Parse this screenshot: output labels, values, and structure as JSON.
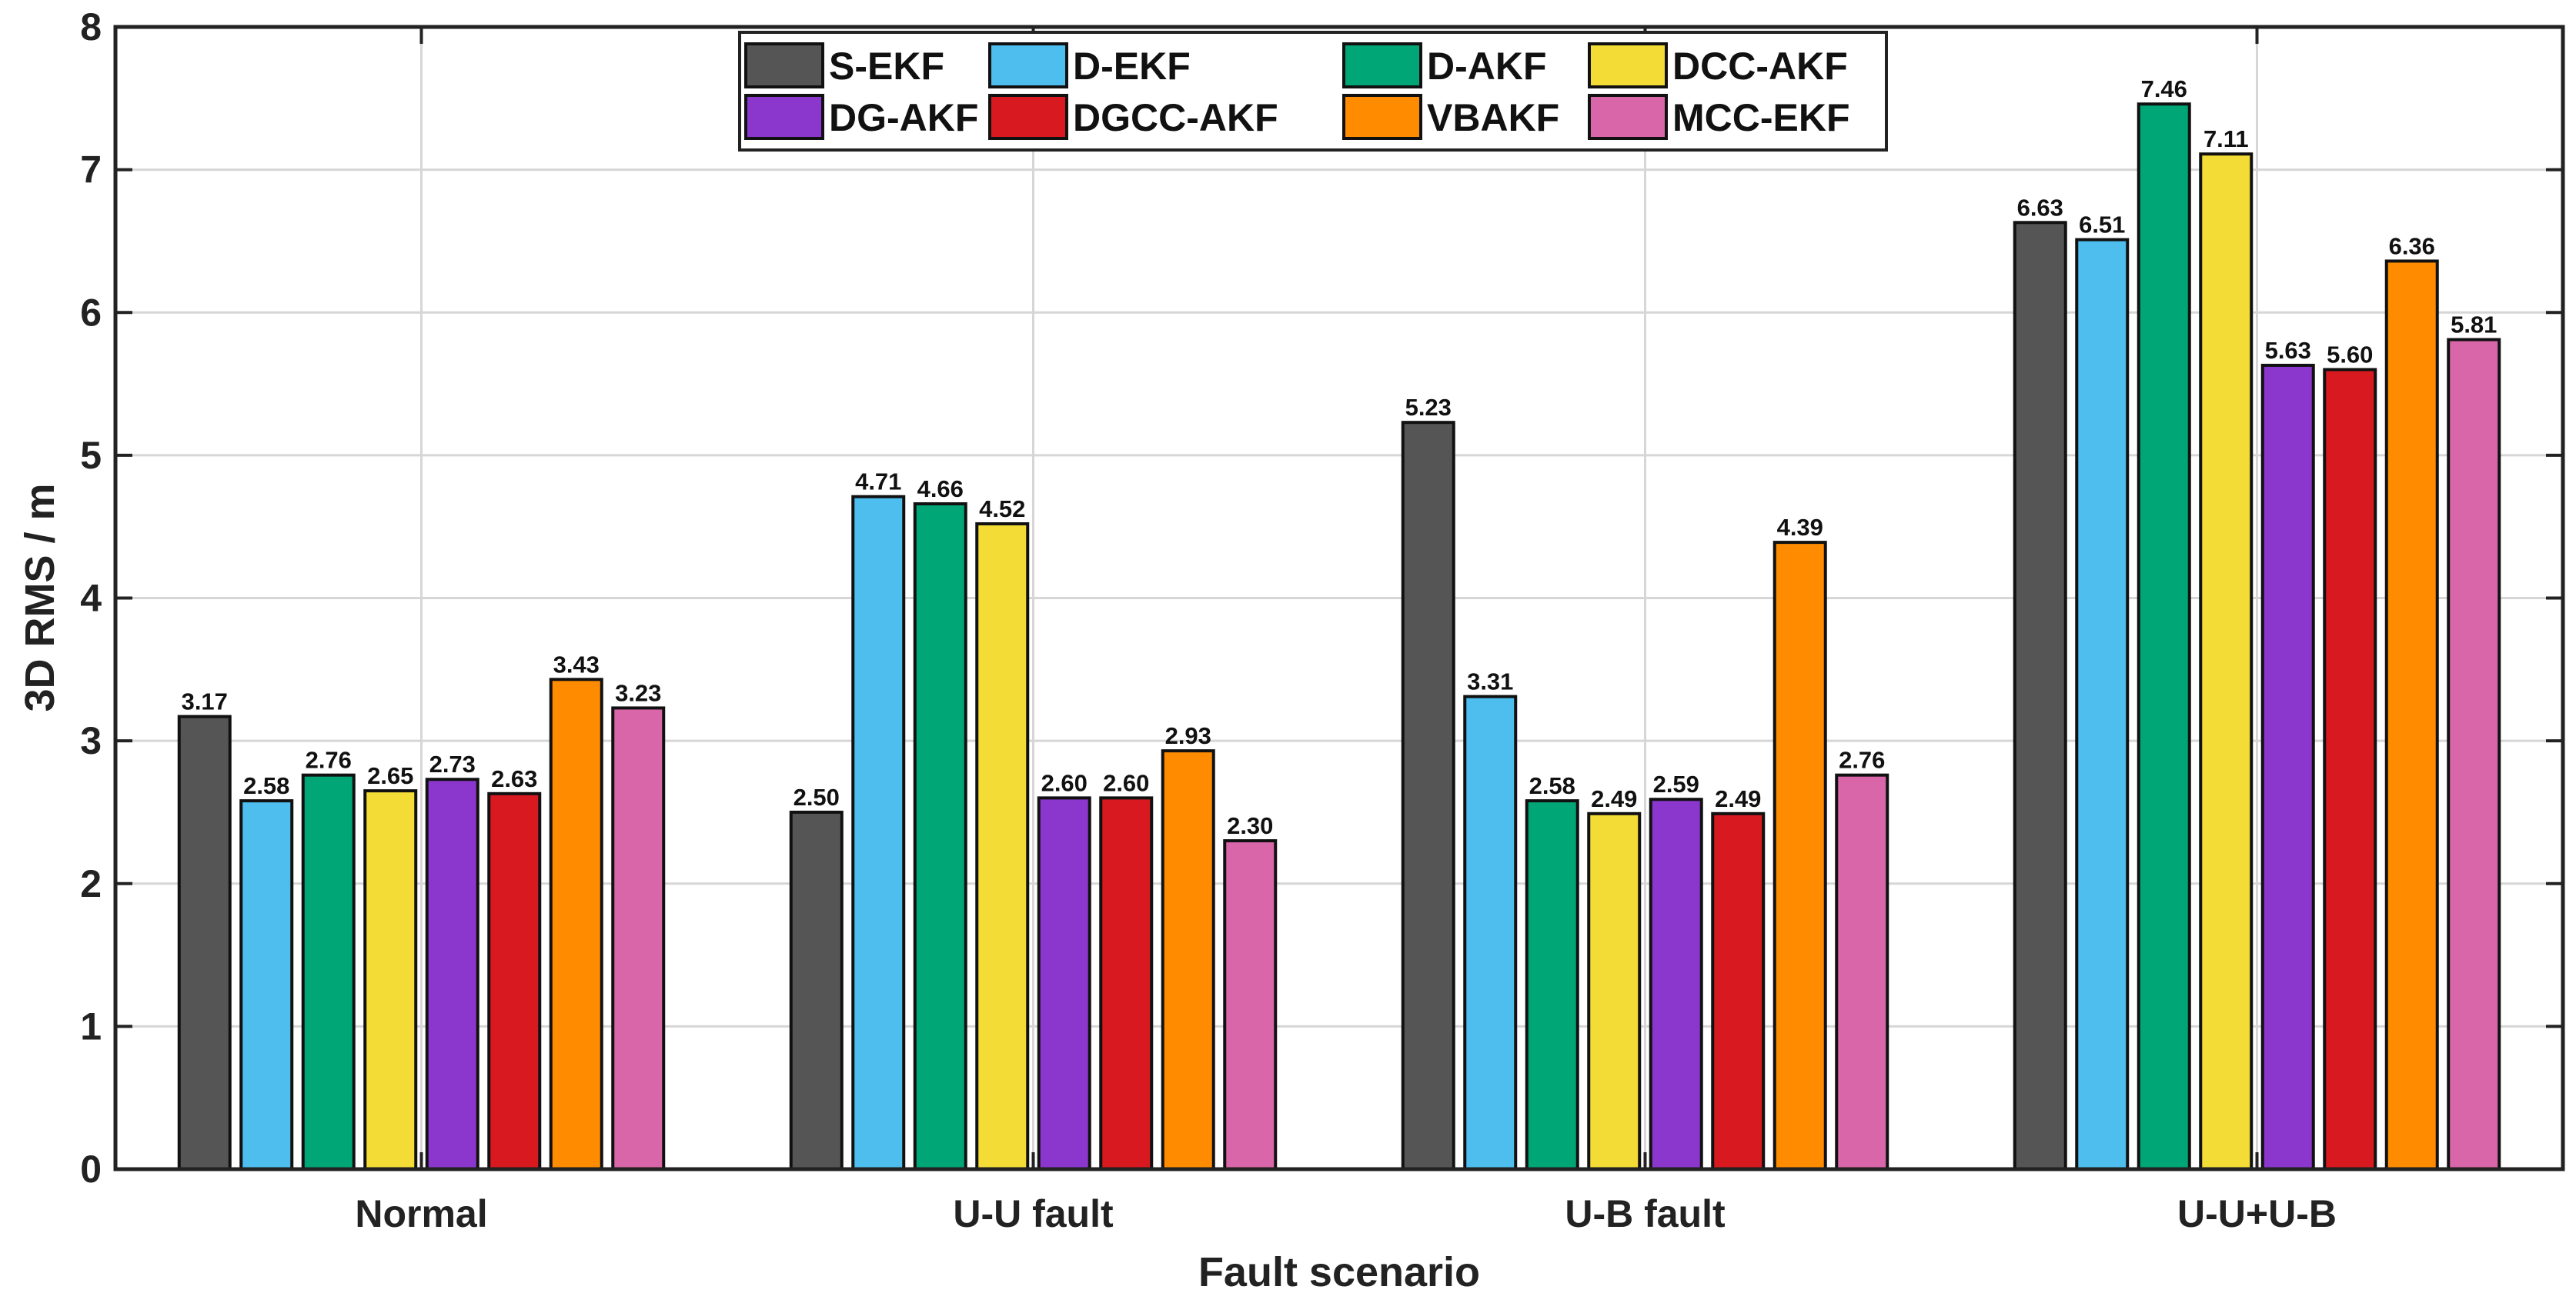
{
  "chart_data": {
    "type": "bar",
    "title": "",
    "xlabel": "Fault scenario",
    "ylabel": "3D RMS / m",
    "ylim": [
      0,
      8
    ],
    "yticks": [
      "0",
      "1",
      "2",
      "3",
      "4",
      "5",
      "6",
      "7",
      "8"
    ],
    "grid": true,
    "legend_placement": "top-center",
    "categories": [
      "Normal",
      "U-U fault",
      "U-B fault",
      "U-U+U-B"
    ],
    "series": [
      {
        "name": "S-EKF",
        "color": "#555555",
        "values": [
          3.17,
          2.5,
          5.23,
          6.63
        ],
        "labels": [
          "3.17",
          "2.50",
          "5.23",
          "6.63"
        ]
      },
      {
        "name": "D-EKF",
        "color": "#4dbeee",
        "values": [
          2.58,
          4.71,
          3.31,
          6.51
        ],
        "labels": [
          "2.58",
          "4.71",
          "3.31",
          "6.51"
        ]
      },
      {
        "name": "D-AKF",
        "color": "#00a676",
        "values": [
          2.76,
          4.66,
          2.58,
          7.46
        ],
        "labels": [
          "2.76",
          "4.66",
          "2.58",
          "7.46"
        ]
      },
      {
        "name": "DCC-AKF",
        "color": "#f2dc35",
        "values": [
          2.65,
          4.52,
          2.49,
          7.11
        ],
        "labels": [
          "2.65",
          "4.52",
          "2.49",
          "7.11"
        ]
      },
      {
        "name": "DG-AKF",
        "color": "#8b36cc",
        "values": [
          2.73,
          2.6,
          2.59,
          5.63
        ],
        "labels": [
          "2.73",
          "2.60",
          "2.59",
          "5.63"
        ]
      },
      {
        "name": "DGCC-AKF",
        "color": "#d8191f",
        "values": [
          2.63,
          2.6,
          2.49,
          5.6
        ],
        "labels": [
          "2.63",
          "2.60",
          "2.49",
          "5.60"
        ]
      },
      {
        "name": "VBAKF",
        "color": "#ff8c00",
        "values": [
          3.43,
          2.93,
          4.39,
          6.36
        ],
        "labels": [
          "3.43",
          "2.93",
          "4.39",
          "6.36"
        ]
      },
      {
        "name": "MCC-EKF",
        "color": "#d966a8",
        "values": [
          3.23,
          2.3,
          2.76,
          5.81
        ],
        "labels": [
          "3.23",
          "2.30",
          "2.76",
          "5.81"
        ]
      }
    ]
  }
}
